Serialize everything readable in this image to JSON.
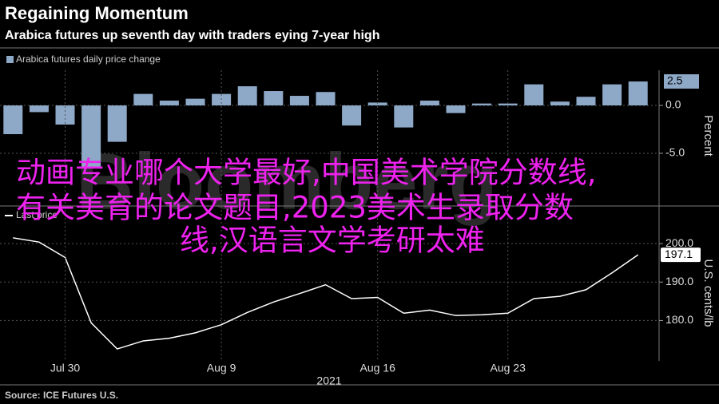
{
  "title": "Regaining Momentum",
  "subtitle": "Arabica futures up seventh day with traders eying 7-year high",
  "source": "Source: ICE Futures U.S.",
  "watermark": "Bloomberg",
  "overlay_text": [
    "动画专业哪个大学最好,中国美术学院分数线,",
    "有关美育的论文题目,2023美术生录取分数",
    "线,汉语言文学考研太难"
  ],
  "chart_data": [
    {
      "type": "bar",
      "series": [
        {
          "name": "Arabica futures daily price change",
          "color": "#8ea8c8",
          "values": [
            -3.0,
            -0.7,
            -2.0,
            -6.5,
            -3.8,
            1.2,
            0.5,
            0.7,
            1.2,
            2.0,
            1.5,
            1.0,
            1.4,
            -2.1,
            0.3,
            -2.3,
            0.5,
            -0.8,
            0.2,
            0.2,
            2.2,
            0.4,
            0.9,
            2.2,
            2.5
          ]
        }
      ],
      "ylim": [
        -10,
        3.67
      ],
      "yticks": [
        {
          "value": 0,
          "label": "0.0"
        },
        {
          "value": -5,
          "label": "-5.0"
        }
      ],
      "ylabel": "Percent",
      "grid": true
    },
    {
      "type": "line",
      "categories": [
        null,
        null,
        "Jul 30",
        null,
        null,
        null,
        null,
        null,
        "Aug 9",
        null,
        null,
        null,
        null,
        null,
        "Aug 16",
        null,
        null,
        null,
        null,
        "Aug 23",
        null,
        null,
        null,
        null,
        null
      ],
      "xlabel": "2021",
      "series": [
        {
          "name": "Last price",
          "color": "#ffffff",
          "values": [
            201.5,
            200.4,
            196.4,
            179.4,
            172.6,
            174.7,
            175.4,
            176.8,
            178.9,
            182.1,
            184.8,
            187.0,
            189.3,
            185.7,
            186.0,
            181.9,
            182.7,
            181.3,
            181.5,
            181.9,
            185.7,
            186.3,
            188.0,
            192.4,
            197.1
          ]
        }
      ],
      "ylim": [
        169.5,
        204.8
      ],
      "yticks": [
        {
          "value": 200,
          "label": "200.0"
        },
        {
          "value": 190,
          "label": "190.0"
        },
        {
          "value": 180,
          "label": "180.0"
        }
      ],
      "ylabel": "U.S. cents/lb",
      "grid": true
    }
  ]
}
